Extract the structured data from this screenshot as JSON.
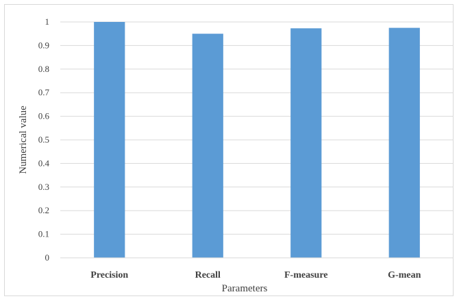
{
  "chart_data": {
    "type": "bar",
    "title": "",
    "xlabel": "Parameters",
    "ylabel": "Numerical value",
    "categories": [
      "Precision",
      "Recall",
      "F-measure",
      "G-mean"
    ],
    "values": [
      1.0,
      0.95,
      0.973,
      0.975
    ],
    "ylim": [
      0,
      1
    ],
    "yticks": [
      0,
      0.1,
      0.2,
      0.3,
      0.4,
      0.5,
      0.6,
      0.7,
      0.8,
      0.9,
      1
    ],
    "ytick_labels": [
      "0",
      "0.1",
      "0.2",
      "0.3",
      "0.4",
      "0.5",
      "0.6",
      "0.7",
      "0.8",
      "0.9",
      "1"
    ],
    "grid": true,
    "legend": "none",
    "colors": {
      "bar": "#5b9bd5",
      "grid": "#d9d9d9",
      "text": "#404040"
    }
  }
}
